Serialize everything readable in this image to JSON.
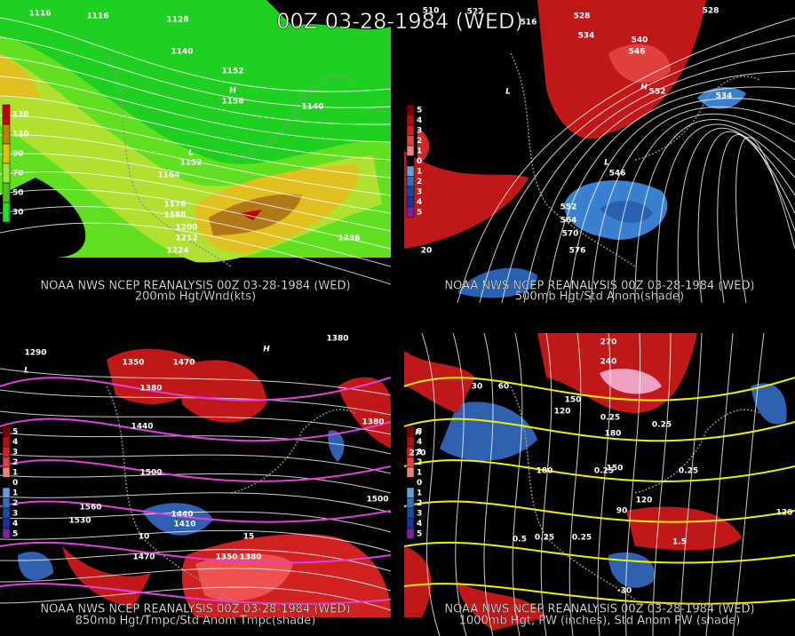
{
  "title": "00Z 03-28-1984 (WED)",
  "panels": [
    {
      "caption": "NOAA NWS NCEP REANALYSIS 00Z 03-28-1984 (WED)",
      "subtitle": "200mb Hgt/Wnd(kts)",
      "legend": [
        "130",
        "110",
        "90",
        "70",
        "50",
        "30"
      ],
      "labels": [
        "1116",
        "1116",
        "1128",
        "1140",
        "1152",
        "H",
        "1156",
        "L",
        "1152",
        "1140",
        "1164",
        "1176",
        "1188",
        "1200",
        "1212",
        "1224",
        "1236"
      ]
    },
    {
      "caption": "NOAA NWS NCEP REANALYSIS 00Z 03-28-1984 (WED)",
      "subtitle": "500mb Hgt/Std Anom(shade)",
      "legend": [
        "5",
        "4",
        "3",
        "2",
        "1",
        "0",
        "1",
        "2",
        "3",
        "4",
        "5"
      ],
      "labels": [
        "510",
        "522",
        "516",
        "528",
        "534",
        "540",
        "546",
        "H",
        "552",
        "528",
        "L",
        "534",
        "L",
        "546",
        "552",
        "564",
        "570",
        "576",
        "20"
      ]
    },
    {
      "caption": "NOAA NWS NCEP REANALYSIS 00Z 03-28-1984 (WED)",
      "subtitle": "850mb Hgt/Tmpc/Std Anom Tmpc(shade)",
      "legend": [
        "5",
        "4",
        "3",
        "2",
        "1",
        "0",
        "1",
        "2",
        "3",
        "4",
        "5"
      ],
      "labels": [
        "1290",
        "1350",
        "1470",
        "1380",
        "1440",
        "1500",
        "1560",
        "1530",
        "1440",
        "1410",
        "1470",
        "1350",
        "1380",
        "1500",
        "1380",
        "H",
        "1380",
        "L",
        "10",
        "15"
      ]
    },
    {
      "caption": "NOAA NWS NCEP REANALYSIS 00Z 03-28-1984 (WED)",
      "subtitle": "1000mb Hgt, PW (inches), Std Anom PW (shade)",
      "legend": [
        "5",
        "4",
        "3",
        "2",
        "1",
        "0",
        "1",
        "2",
        "3",
        "4",
        "5"
      ],
      "labels": [
        "270",
        "240",
        "30",
        "60",
        "120",
        "150",
        "0.25",
        "0.25",
        "180",
        "180",
        "H",
        "270",
        "0.25",
        "150",
        "120",
        "90",
        "0.5",
        "0.25",
        "0.25",
        "1.5",
        "-30",
        "120",
        "0.25"
      ]
    }
  ]
}
